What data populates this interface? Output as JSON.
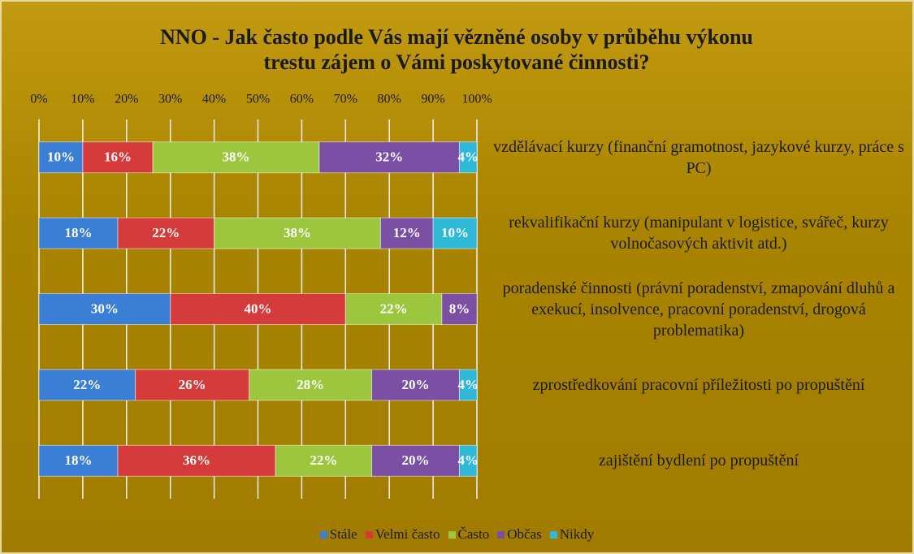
{
  "chart_data": {
    "type": "stacked-bar-horizontal",
    "title": "NNO - Jak často podle Vás mají vězněné osoby v průběhu výkonu trestu zájem o Vámi poskytované činnosti?",
    "categories": [
      "vzdělávací kurzy (finanční gramotnost, jazykové kurzy, práce s PC)",
      "rekvalifikační kurzy (manipulant v logistice, svářeč, kurzy volnočasových aktivit atd.)",
      "poradenské činnosti (právní poradenství, zmapování dluhů a exekucí, insolvence, pracovní poradenství, drogová problematika)",
      "zprostředkování pracovní příležitosti po propuštění",
      "zajištění bydlení po propuštění"
    ],
    "series": [
      {
        "name": "Stále",
        "color": "#3a7fd5",
        "values": [
          10,
          18,
          30,
          22,
          18
        ],
        "value_labels": [
          "10%",
          "18%",
          "30%",
          "22%",
          "18%"
        ]
      },
      {
        "name": "Velmi často",
        "color": "#d63b3b",
        "values": [
          16,
          22,
          40,
          26,
          36
        ],
        "value_labels": [
          "16%",
          "22%",
          "40%",
          "26%",
          "36%"
        ]
      },
      {
        "name": "Často",
        "color": "#9cc63e",
        "values": [
          38,
          38,
          22,
          28,
          22
        ],
        "value_labels": [
          "38%",
          "38%",
          "22%",
          "28%",
          "22%"
        ]
      },
      {
        "name": "Občas",
        "color": "#7b4fa3",
        "values": [
          32,
          12,
          8,
          20,
          20
        ],
        "value_labels": [
          "32%",
          "12%",
          "8%",
          "20%",
          "20%"
        ]
      },
      {
        "name": "Nikdy",
        "color": "#2fb8d8",
        "values": [
          4,
          10,
          null,
          4,
          4
        ],
        "value_labels": [
          "4%",
          "10%",
          null,
          "4%",
          "4%"
        ]
      }
    ],
    "xlim": [
      0,
      100
    ],
    "xticks": [
      {
        "value": 0,
        "label": "0%"
      },
      {
        "value": 10,
        "label": "10%"
      },
      {
        "value": 20,
        "label": "20%"
      },
      {
        "value": 30,
        "label": "30%"
      },
      {
        "value": 40,
        "label": "40%"
      },
      {
        "value": 50,
        "label": "50%"
      },
      {
        "value": 60,
        "label": "60%"
      },
      {
        "value": 70,
        "label": "70%"
      },
      {
        "value": 80,
        "label": "80%"
      },
      {
        "value": 90,
        "label": "90%"
      },
      {
        "value": 100,
        "label": "100%"
      }
    ],
    "grid": true,
    "legend": "bottom"
  }
}
